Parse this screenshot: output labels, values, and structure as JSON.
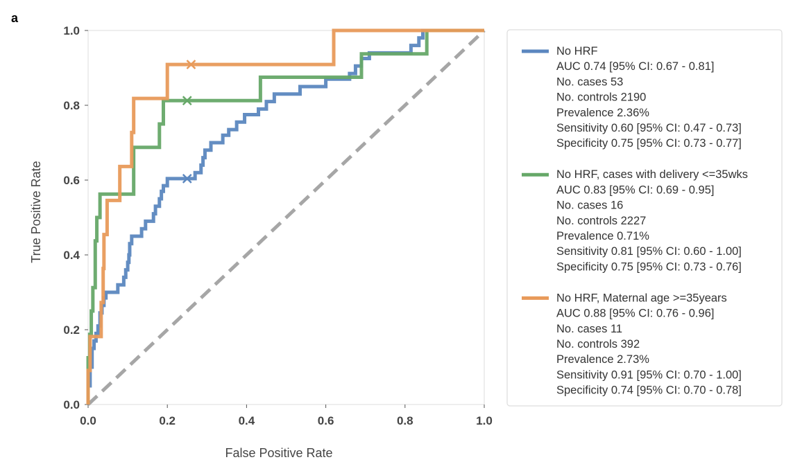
{
  "panel_label": "a",
  "chart_data": {
    "type": "line",
    "xlabel": "False Positive Rate",
    "ylabel": "True Positive Rate",
    "xlim": [
      0.0,
      1.0
    ],
    "ylim": [
      0.0,
      1.0
    ],
    "xticks": [
      "0.0",
      "0.2",
      "0.4",
      "0.6",
      "0.8",
      "1.0"
    ],
    "yticks": [
      "0.0",
      "0.2",
      "0.4",
      "0.6",
      "0.8",
      "1.0"
    ],
    "grid": false,
    "legend_position": "right, outside plot",
    "reference_line": {
      "x": [
        0,
        1
      ],
      "y": [
        0,
        1
      ],
      "color": "#a6a6a6",
      "style": "dashed"
    },
    "series": [
      {
        "name": "No HRF",
        "color": "#5b87bf",
        "legend_lines": [
          "AUC 0.74 [95% CI: 0.67 - 0.81]",
          "No. cases 53",
          "No. controls 2190",
          "Prevalence 2.36%",
          "Sensitivity 0.60 [95% CI: 0.47 - 0.73]",
          "Specificity 0.75 [95% CI: 0.73 - 0.77]"
        ],
        "operating_point": {
          "x": 0.25,
          "y": 0.604
        },
        "points": [
          [
            0,
            0
          ],
          [
            0,
            0.05
          ],
          [
            0.005,
            0.05
          ],
          [
            0.005,
            0.1
          ],
          [
            0.01,
            0.1
          ],
          [
            0.01,
            0.15
          ],
          [
            0.015,
            0.15
          ],
          [
            0.015,
            0.17
          ],
          [
            0.02,
            0.17
          ],
          [
            0.02,
            0.19
          ],
          [
            0.025,
            0.19
          ],
          [
            0.025,
            0.21
          ],
          [
            0.03,
            0.21
          ],
          [
            0.03,
            0.245
          ],
          [
            0.035,
            0.245
          ],
          [
            0.035,
            0.265
          ],
          [
            0.04,
            0.265
          ],
          [
            0.04,
            0.285
          ],
          [
            0.045,
            0.285
          ],
          [
            0.045,
            0.3
          ],
          [
            0.075,
            0.3
          ],
          [
            0.075,
            0.32
          ],
          [
            0.09,
            0.32
          ],
          [
            0.09,
            0.34
          ],
          [
            0.095,
            0.34
          ],
          [
            0.095,
            0.36
          ],
          [
            0.1,
            0.36
          ],
          [
            0.1,
            0.38
          ],
          [
            0.103,
            0.38
          ],
          [
            0.103,
            0.4
          ],
          [
            0.105,
            0.4
          ],
          [
            0.105,
            0.43
          ],
          [
            0.11,
            0.43
          ],
          [
            0.11,
            0.45
          ],
          [
            0.135,
            0.45
          ],
          [
            0.135,
            0.47
          ],
          [
            0.145,
            0.47
          ],
          [
            0.145,
            0.49
          ],
          [
            0.165,
            0.49
          ],
          [
            0.165,
            0.51
          ],
          [
            0.17,
            0.51
          ],
          [
            0.17,
            0.53
          ],
          [
            0.18,
            0.53
          ],
          [
            0.18,
            0.55
          ],
          [
            0.185,
            0.55
          ],
          [
            0.185,
            0.57
          ],
          [
            0.19,
            0.57
          ],
          [
            0.19,
            0.585
          ],
          [
            0.2,
            0.585
          ],
          [
            0.2,
            0.604
          ],
          [
            0.27,
            0.604
          ],
          [
            0.27,
            0.62
          ],
          [
            0.285,
            0.62
          ],
          [
            0.285,
            0.64
          ],
          [
            0.29,
            0.64
          ],
          [
            0.29,
            0.66
          ],
          [
            0.295,
            0.66
          ],
          [
            0.295,
            0.68
          ],
          [
            0.31,
            0.68
          ],
          [
            0.31,
            0.7
          ],
          [
            0.34,
            0.7
          ],
          [
            0.34,
            0.72
          ],
          [
            0.355,
            0.72
          ],
          [
            0.355,
            0.735
          ],
          [
            0.375,
            0.735
          ],
          [
            0.375,
            0.755
          ],
          [
            0.395,
            0.755
          ],
          [
            0.395,
            0.775
          ],
          [
            0.43,
            0.775
          ],
          [
            0.43,
            0.79
          ],
          [
            0.45,
            0.79
          ],
          [
            0.45,
            0.81
          ],
          [
            0.47,
            0.81
          ],
          [
            0.47,
            0.83
          ],
          [
            0.535,
            0.83
          ],
          [
            0.535,
            0.85
          ],
          [
            0.6,
            0.85
          ],
          [
            0.6,
            0.87
          ],
          [
            0.66,
            0.87
          ],
          [
            0.66,
            0.885
          ],
          [
            0.675,
            0.885
          ],
          [
            0.675,
            0.905
          ],
          [
            0.69,
            0.905
          ],
          [
            0.69,
            0.925
          ],
          [
            0.71,
            0.925
          ],
          [
            0.71,
            0.94
          ],
          [
            0.815,
            0.94
          ],
          [
            0.815,
            0.96
          ],
          [
            0.835,
            0.96
          ],
          [
            0.835,
            0.98
          ],
          [
            0.845,
            0.98
          ],
          [
            0.845,
            1.0
          ],
          [
            1.0,
            1.0
          ]
        ]
      },
      {
        "name": "No HRF, cases with delivery <=35wks",
        "color": "#66a868",
        "legend_lines": [
          "AUC 0.83 [95% CI: 0.69 - 0.95]",
          "No. cases 16",
          "No. controls 2227",
          "Prevalence 0.71%",
          "Sensitivity 0.81 [95% CI: 0.60 - 1.00]",
          "Specificity 0.75 [95% CI: 0.73 - 0.76]"
        ],
        "operating_point": {
          "x": 0.25,
          "y": 0.8125
        },
        "points": [
          [
            0,
            0
          ],
          [
            0,
            0.125
          ],
          [
            0.004,
            0.125
          ],
          [
            0.004,
            0.1875
          ],
          [
            0.008,
            0.1875
          ],
          [
            0.008,
            0.25
          ],
          [
            0.012,
            0.25
          ],
          [
            0.012,
            0.3125
          ],
          [
            0.018,
            0.3125
          ],
          [
            0.018,
            0.4375
          ],
          [
            0.022,
            0.4375
          ],
          [
            0.022,
            0.5
          ],
          [
            0.03,
            0.5
          ],
          [
            0.03,
            0.5625
          ],
          [
            0.115,
            0.5625
          ],
          [
            0.115,
            0.6875
          ],
          [
            0.18,
            0.6875
          ],
          [
            0.18,
            0.75
          ],
          [
            0.19,
            0.75
          ],
          [
            0.19,
            0.8125
          ],
          [
            0.435,
            0.8125
          ],
          [
            0.435,
            0.875
          ],
          [
            0.69,
            0.875
          ],
          [
            0.69,
            0.9375
          ],
          [
            0.855,
            0.9375
          ],
          [
            0.855,
            1.0
          ],
          [
            1.0,
            1.0
          ]
        ]
      },
      {
        "name": "No HRF, Maternal age >=35years",
        "color": "#e89a5a",
        "legend_lines": [
          "AUC 0.88 [95% CI: 0.76 - 0.96]",
          "No. cases 11",
          "No. controls 392",
          "Prevalence 2.73%",
          "Sensitivity 0.91 [95% CI: 0.70 - 1.00]",
          "Specificity 0.74 [95% CI: 0.70 - 0.78]"
        ],
        "operating_point": {
          "x": 0.26,
          "y": 0.909
        },
        "points": [
          [
            0,
            0
          ],
          [
            0,
            0.0909
          ],
          [
            0.005,
            0.0909
          ],
          [
            0.005,
            0.1818
          ],
          [
            0.033,
            0.1818
          ],
          [
            0.033,
            0.2727
          ],
          [
            0.038,
            0.2727
          ],
          [
            0.038,
            0.3636
          ],
          [
            0.04,
            0.3636
          ],
          [
            0.04,
            0.4545
          ],
          [
            0.048,
            0.4545
          ],
          [
            0.048,
            0.5455
          ],
          [
            0.08,
            0.5455
          ],
          [
            0.08,
            0.6364
          ],
          [
            0.11,
            0.6364
          ],
          [
            0.11,
            0.7273
          ],
          [
            0.115,
            0.7273
          ],
          [
            0.115,
            0.8182
          ],
          [
            0.2,
            0.8182
          ],
          [
            0.2,
            0.9091
          ],
          [
            0.62,
            0.9091
          ],
          [
            0.62,
            1.0
          ],
          [
            1.0,
            1.0
          ]
        ]
      }
    ]
  }
}
